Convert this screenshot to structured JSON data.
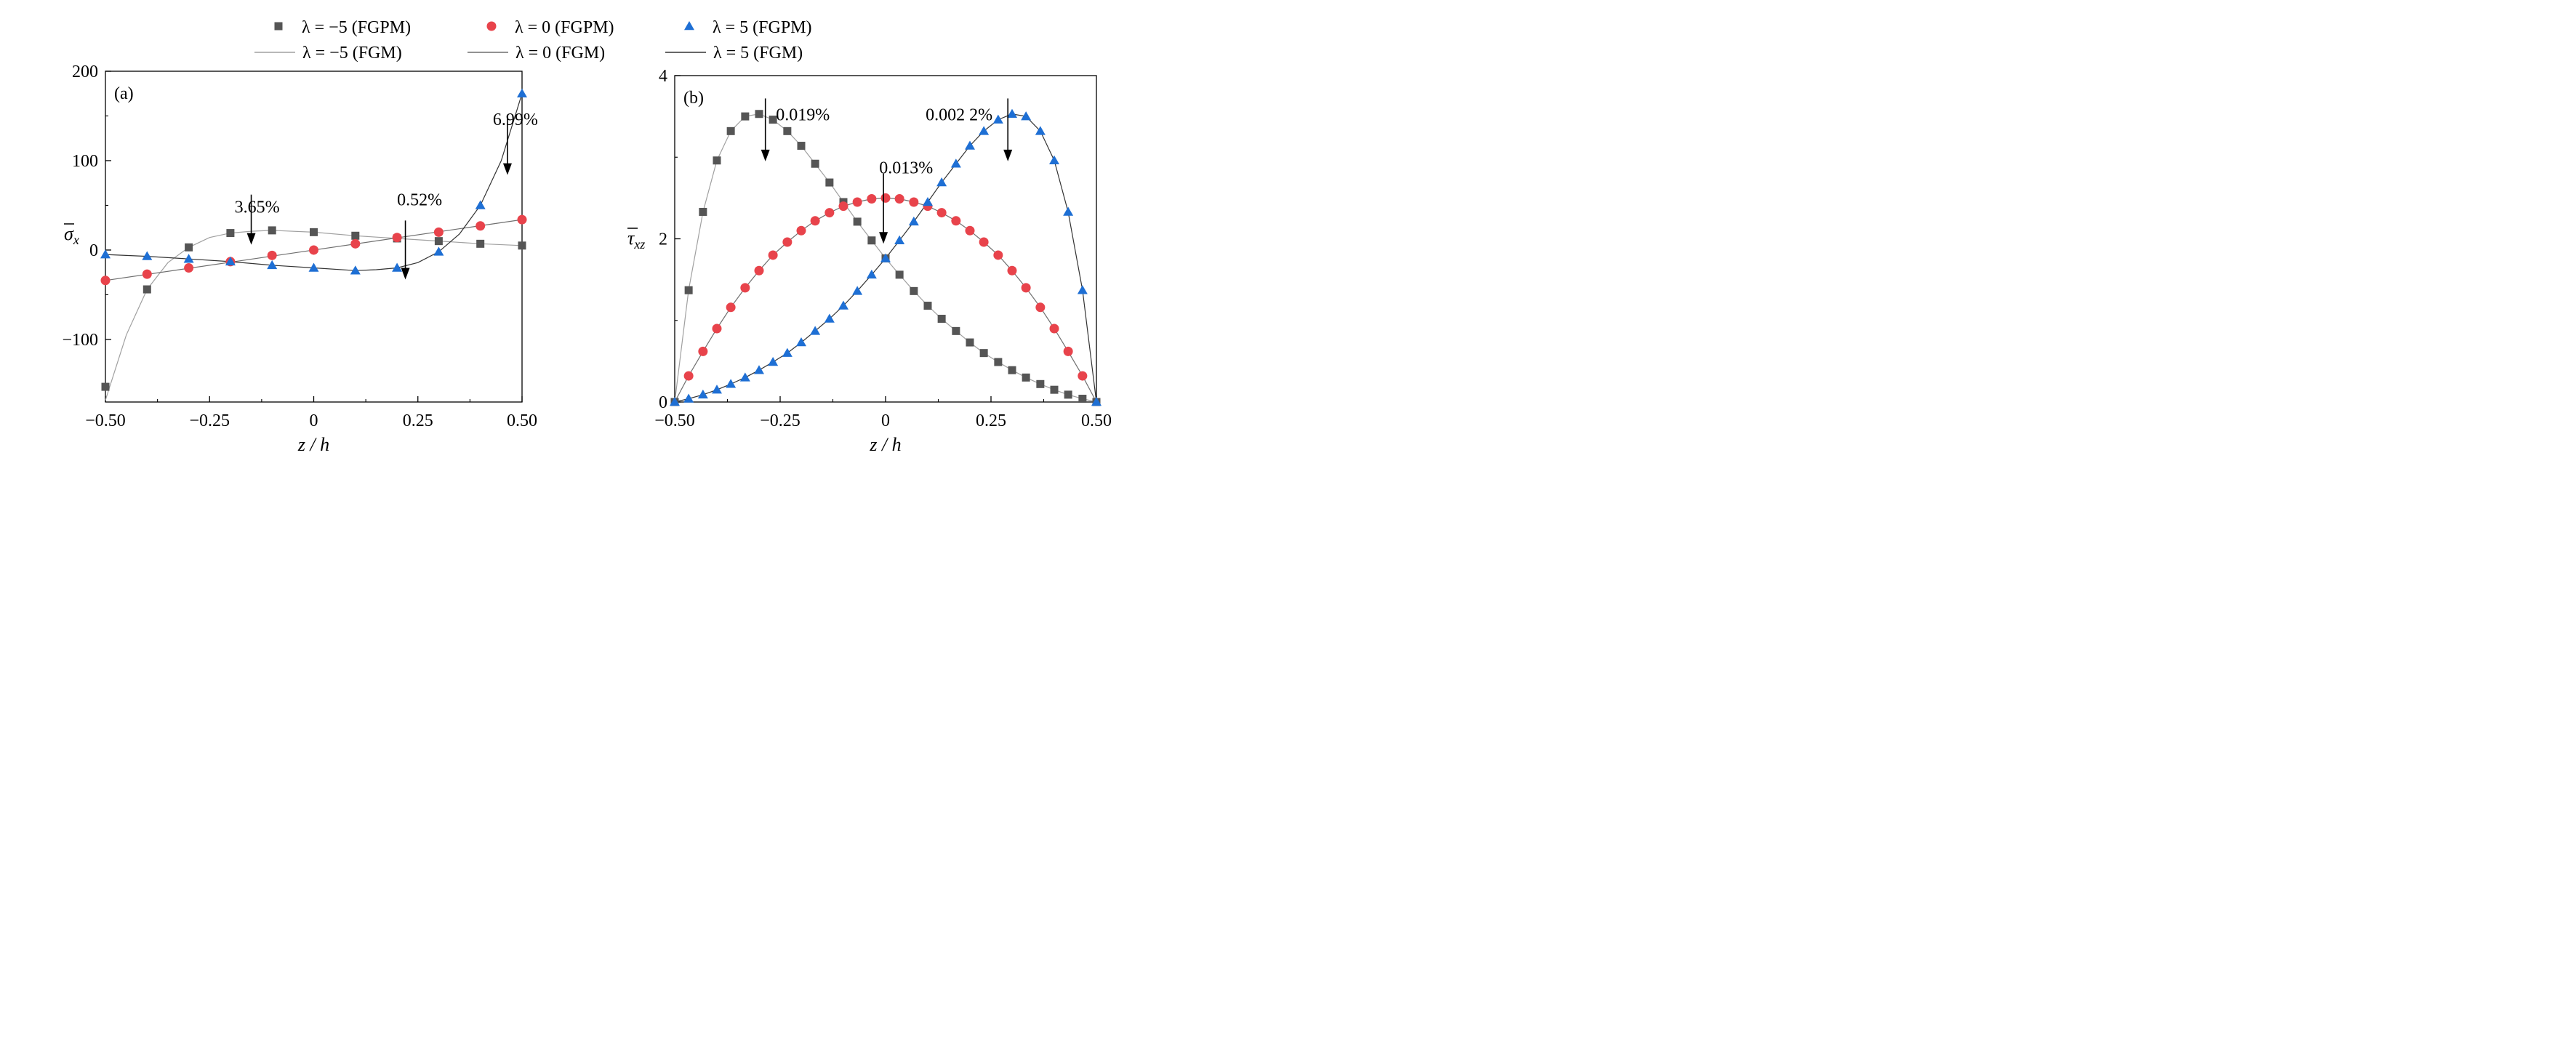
{
  "legend": {
    "items": [
      {
        "label": "λ = −5 (FGPM)",
        "kind": "marker",
        "shape": "square",
        "color": "#555555"
      },
      {
        "label": "λ = 0 (FGPM)",
        "kind": "marker",
        "shape": "circle",
        "color": "#e8434b"
      },
      {
        "label": "λ = 5 (FGPM)",
        "kind": "marker",
        "shape": "triangle",
        "color": "#1e6fd4"
      },
      {
        "label": "λ = −5 (FGM)",
        "kind": "line",
        "color": "#a0a0a0"
      },
      {
        "label": "λ = 0 (FGM)",
        "kind": "line",
        "color": "#6f6f6f"
      },
      {
        "label": "λ = 5 (FGM)",
        "kind": "line",
        "color": "#333333"
      }
    ]
  },
  "chart_data": [
    {
      "type": "scatter",
      "panel_label": "(a)",
      "xlabel": "z / h",
      "ylabel": "σx",
      "xlim": [
        -0.5,
        0.5
      ],
      "ylim": [
        -170,
        200
      ],
      "xticks": [
        -0.5,
        -0.25,
        0,
        0.25,
        0.5
      ],
      "xtick_labels": [
        "−0.50",
        "−0.25",
        "0",
        "0.25",
        "0.50"
      ],
      "yticks": [
        -100,
        0,
        100,
        200
      ],
      "ytick_labels": [
        "−100",
        "0",
        "100",
        "200"
      ],
      "series": [
        {
          "name": "λ = −5 (FGPM)",
          "marker": "square",
          "color": "#555555",
          "x": [
            -0.5,
            -0.4,
            -0.3,
            -0.2,
            -0.1,
            0,
            0.1,
            0.2,
            0.3,
            0.4,
            0.5
          ],
          "y": [
            -153,
            -44,
            3,
            19,
            22,
            20,
            16,
            13,
            10,
            7,
            5
          ]
        },
        {
          "name": "λ = 0 (FGPM)",
          "marker": "circle",
          "color": "#e8434b",
          "x": [
            -0.5,
            -0.4,
            -0.3,
            -0.2,
            -0.1,
            0,
            0.1,
            0.2,
            0.3,
            0.4,
            0.5
          ],
          "y": [
            -34,
            -27,
            -20,
            -13,
            -6,
            0,
            7,
            14,
            20,
            27,
            34
          ]
        },
        {
          "name": "λ = 5 (FGPM)",
          "marker": "triangle",
          "color": "#1e6fd4",
          "x": [
            -0.5,
            -0.4,
            -0.3,
            -0.2,
            -0.1,
            0,
            0.1,
            0.2,
            0.3,
            0.4,
            0.5
          ],
          "y": [
            -5,
            -7,
            -10,
            -13,
            -17,
            -20,
            -23,
            -20,
            -2,
            50,
            175
          ]
        },
        {
          "name": "λ = −5 (FGM)",
          "line": true,
          "color": "#a0a0a0",
          "x": [
            -0.5,
            -0.45,
            -0.4,
            -0.35,
            -0.3,
            -0.25,
            -0.2,
            -0.15,
            -0.1,
            0,
            0.1,
            0.2,
            0.3,
            0.4,
            0.5
          ],
          "y": [
            -168,
            -95,
            -44,
            -14,
            3,
            14,
            19,
            21,
            22,
            20,
            16,
            13,
            10,
            7,
            5
          ]
        },
        {
          "name": "λ = 0 (FGM)",
          "line": true,
          "color": "#6f6f6f",
          "x": [
            -0.5,
            0.5
          ],
          "y": [
            -34,
            34
          ]
        },
        {
          "name": "λ = 5 (FGM)",
          "line": true,
          "color": "#333333",
          "x": [
            -0.5,
            -0.4,
            -0.3,
            -0.2,
            -0.1,
            0,
            0.1,
            0.15,
            0.2,
            0.25,
            0.3,
            0.35,
            0.4,
            0.45,
            0.5
          ],
          "y": [
            -5,
            -7,
            -10,
            -13,
            -17,
            -20,
            -23,
            -22,
            -20,
            -14,
            -2,
            18,
            50,
            100,
            175
          ]
        }
      ],
      "annotations": [
        {
          "text": "3.65%",
          "arrow_x": -0.15,
          "arrow_y_from": 62,
          "arrow_y_to": 6,
          "text_x": -0.19,
          "text_y": 42
        },
        {
          "text": "0.52%",
          "arrow_x": 0.22,
          "arrow_y_from": 33,
          "arrow_y_to": -33,
          "text_x": 0.2,
          "text_y": 50
        },
        {
          "text": "6.99%",
          "arrow_x": 0.465,
          "arrow_y_from": 148,
          "arrow_y_to": 84,
          "text_x": 0.43,
          "text_y": 140
        }
      ]
    },
    {
      "type": "scatter",
      "panel_label": "(b)",
      "xlabel": "z / h",
      "ylabel": "τxz",
      "xlim": [
        -0.5,
        0.5
      ],
      "ylim": [
        0,
        4
      ],
      "xticks": [
        -0.5,
        -0.25,
        0,
        0.25,
        0.5
      ],
      "xtick_labels": [
        "−0.50",
        "−0.25",
        "0",
        "0.25",
        "0.50"
      ],
      "yticks": [
        0,
        2,
        4
      ],
      "ytick_labels": [
        "0",
        "2",
        "4"
      ],
      "series": [
        {
          "name": "λ = −5 (FGPM)",
          "marker": "square",
          "color": "#555555",
          "x": [
            -0.5,
            -0.467,
            -0.433,
            -0.4,
            -0.367,
            -0.333,
            -0.3,
            -0.267,
            -0.233,
            -0.2,
            -0.167,
            -0.133,
            -0.1,
            -0.067,
            -0.033,
            0,
            0.033,
            0.067,
            0.1,
            0.133,
            0.167,
            0.2,
            0.233,
            0.267,
            0.3,
            0.333,
            0.367,
            0.4,
            0.433,
            0.467,
            0.5
          ],
          "y": [
            0,
            1.37,
            2.33,
            2.96,
            3.32,
            3.5,
            3.53,
            3.46,
            3.32,
            3.14,
            2.92,
            2.69,
            2.45,
            2.21,
            1.98,
            1.76,
            1.56,
            1.36,
            1.18,
            1.02,
            0.87,
            0.73,
            0.6,
            0.49,
            0.39,
            0.3,
            0.22,
            0.15,
            0.09,
            0.04,
            0
          ]
        },
        {
          "name": "λ = 0 (FGPM)",
          "marker": "circle",
          "color": "#e8434b",
          "x": [
            -0.467,
            -0.433,
            -0.4,
            -0.367,
            -0.333,
            -0.3,
            -0.267,
            -0.233,
            -0.2,
            -0.167,
            -0.133,
            -0.1,
            -0.067,
            -0.033,
            0,
            0.033,
            0.067,
            0.1,
            0.133,
            0.167,
            0.2,
            0.233,
            0.267,
            0.3,
            0.333,
            0.367,
            0.4,
            0.433,
            0.467
          ],
          "y": [
            0.32,
            0.62,
            0.9,
            1.16,
            1.4,
            1.61,
            1.8,
            1.96,
            2.1,
            2.22,
            2.32,
            2.4,
            2.45,
            2.49,
            2.5,
            2.49,
            2.45,
            2.4,
            2.32,
            2.22,
            2.1,
            1.96,
            1.8,
            1.61,
            1.4,
            1.16,
            0.9,
            0.62,
            0.32
          ]
        },
        {
          "name": "λ = 5 (FGPM)",
          "marker": "triangle",
          "color": "#1e6fd4",
          "x": [
            -0.5,
            -0.467,
            -0.433,
            -0.4,
            -0.367,
            -0.333,
            -0.3,
            -0.267,
            -0.233,
            -0.2,
            -0.167,
            -0.133,
            -0.1,
            -0.067,
            -0.033,
            0,
            0.033,
            0.067,
            0.1,
            0.133,
            0.167,
            0.2,
            0.233,
            0.267,
            0.3,
            0.333,
            0.367,
            0.4,
            0.433,
            0.467,
            0.5
          ],
          "y": [
            0,
            0.04,
            0.09,
            0.15,
            0.22,
            0.3,
            0.39,
            0.49,
            0.6,
            0.73,
            0.87,
            1.02,
            1.18,
            1.36,
            1.56,
            1.76,
            1.98,
            2.21,
            2.45,
            2.69,
            2.92,
            3.14,
            3.32,
            3.46,
            3.53,
            3.5,
            3.32,
            2.96,
            2.33,
            1.37,
            0
          ]
        },
        {
          "name": "λ = −5 (FGM)",
          "line": true,
          "color": "#a0a0a0",
          "same_as": 0
        },
        {
          "name": "λ = 0 (FGM)",
          "line": true,
          "color": "#6f6f6f",
          "same_as": 1,
          "closed_ends": true
        },
        {
          "name": "λ = 5 (FGM)",
          "line": true,
          "color": "#333333",
          "same_as": 2
        }
      ],
      "annotations": [
        {
          "text": "0.019%",
          "arrow_x": -0.285,
          "arrow_y_from": 3.72,
          "arrow_y_to": 2.95,
          "text_x": -0.26,
          "text_y": 3.45
        },
        {
          "text": "0.013%",
          "arrow_x": -0.005,
          "arrow_y_from": 2.8,
          "arrow_y_to": 1.94,
          "text_x": -0.015,
          "text_y": 2.8
        },
        {
          "text": "0.002 2%",
          "arrow_x": 0.29,
          "arrow_y_from": 3.72,
          "arrow_y_to": 2.95,
          "text_x": 0.095,
          "text_y": 3.45
        }
      ]
    }
  ]
}
